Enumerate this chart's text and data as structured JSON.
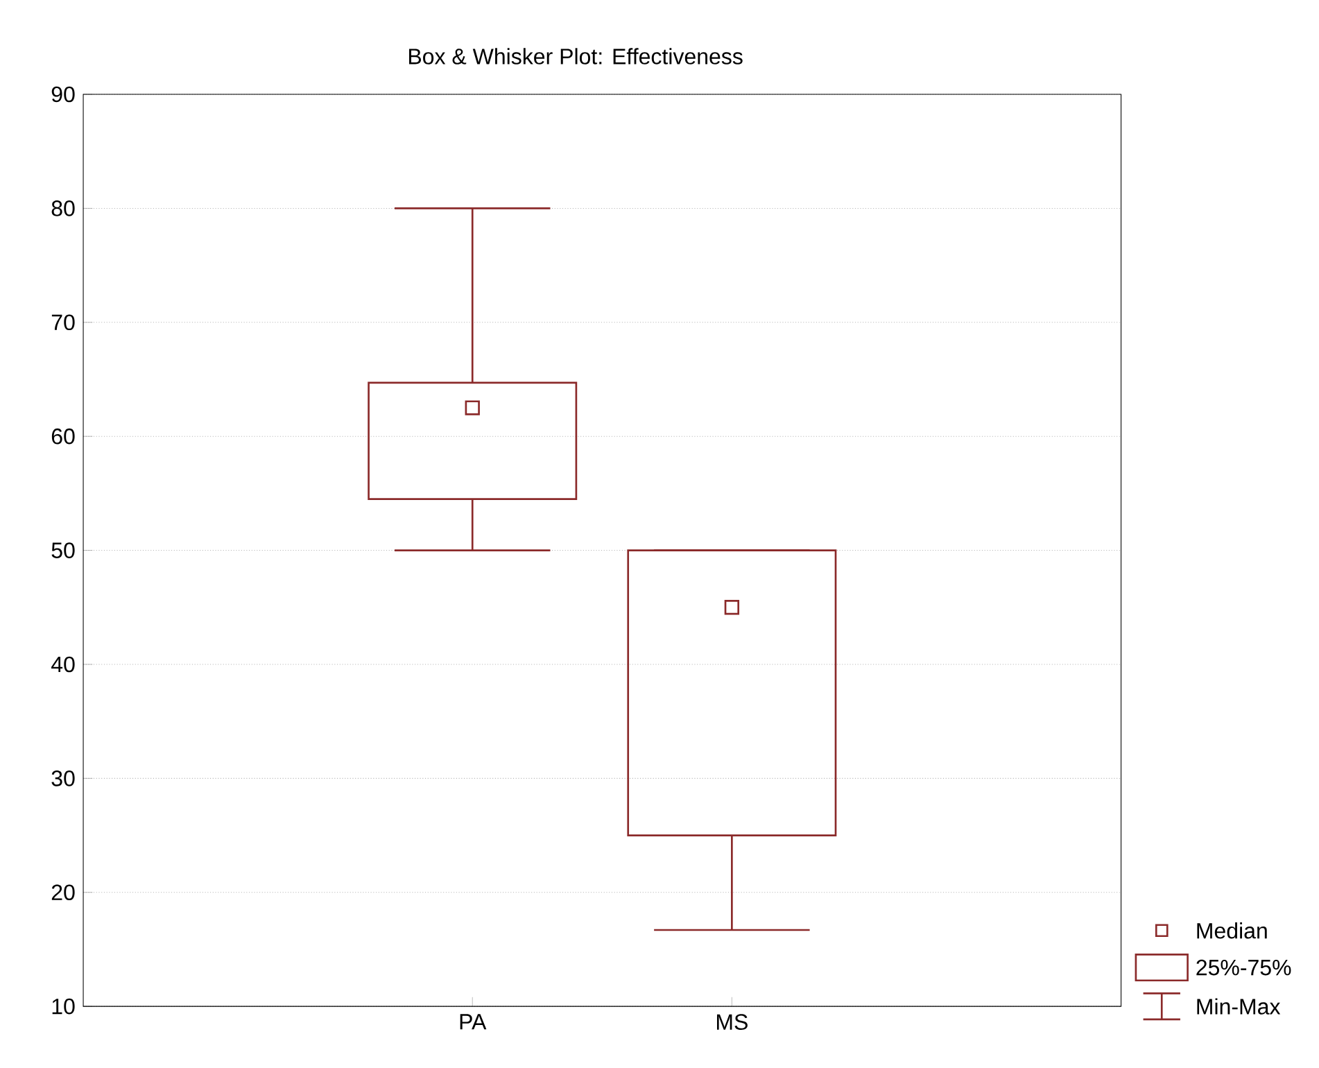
{
  "chart_data": {
    "type": "box",
    "title": "Box & Whisker Plot: Effectiveness",
    "categories": [
      "PA",
      "MS"
    ],
    "boxes": [
      {
        "low": 50,
        "q1": 54.5,
        "median": 62.5,
        "q3": 64.7,
        "high": 80
      },
      {
        "low": 16.7,
        "q1": 25,
        "median": 45,
        "q3": 50,
        "high": 50
      }
    ],
    "color": "#8b2a2a",
    "ylim": [
      10,
      90
    ],
    "yticks": [
      10,
      20,
      30,
      40,
      50,
      60,
      70,
      80,
      90
    ],
    "grid": "y",
    "marker": "square",
    "annotations": [
      "Median",
      "25%-75%",
      "Min-Max"
    ]
  }
}
